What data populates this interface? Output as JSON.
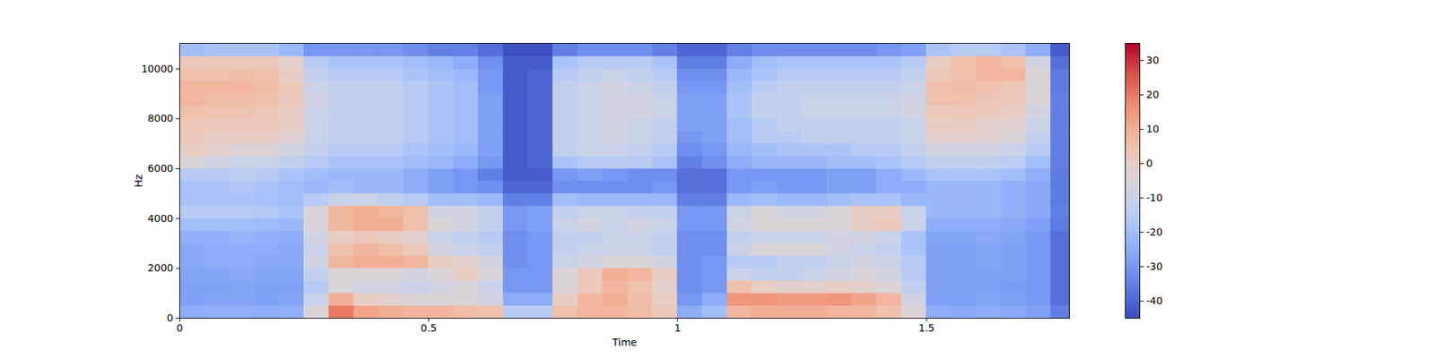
{
  "chart_data": {
    "type": "heatmap",
    "x_label": "Time",
    "y_label": "Hz",
    "xlim": [
      0,
      1.787
    ],
    "ylim": [
      0,
      11025
    ],
    "xticks": [
      0,
      0.5,
      1,
      1.5
    ],
    "yticks": [
      0,
      2000,
      4000,
      6000,
      8000,
      10000
    ],
    "x_edges": [
      0,
      0.05,
      0.1,
      0.15,
      0.2,
      0.25,
      0.3,
      0.35,
      0.4,
      0.45,
      0.5,
      0.55,
      0.6,
      0.65,
      0.7,
      0.75,
      0.8,
      0.85,
      0.9,
      0.95,
      1.0,
      1.05,
      1.1,
      1.15,
      1.2,
      1.25,
      1.3,
      1.35,
      1.4,
      1.45,
      1.5,
      1.55,
      1.6,
      1.65,
      1.7,
      1.75,
      1.787
    ],
    "y_edges": [
      0,
      500,
      1000,
      1500,
      2000,
      2500,
      3000,
      3500,
      4000,
      4500,
      5000,
      5500,
      6000,
      6500,
      7000,
      7500,
      8000,
      8500,
      9000,
      9500,
      10000,
      10500,
      11025
    ],
    "values": [
      [
        -25,
        -24,
        -24,
        -25,
        -24,
        -5,
        20,
        12,
        10,
        8,
        8,
        6,
        5,
        -15,
        -15,
        5,
        8,
        8,
        6,
        2,
        -25,
        -20,
        8,
        10,
        10,
        10,
        8,
        8,
        5,
        -5,
        -25,
        -26,
        -25,
        -26,
        -28,
        -35
      ],
      [
        -28,
        -27,
        -27,
        -28,
        -27,
        -10,
        10,
        0,
        -2,
        -5,
        -5,
        -5,
        -8,
        -25,
        -25,
        0,
        8,
        10,
        6,
        0,
        -30,
        -25,
        15,
        15,
        14,
        14,
        15,
        12,
        8,
        -8,
        -28,
        -28,
        -27,
        -28,
        -30,
        -38
      ],
      [
        -28,
        -28,
        -27,
        -28,
        -28,
        -15,
        -5,
        -8,
        -8,
        -10,
        -8,
        -5,
        -10,
        -30,
        -30,
        -5,
        2,
        8,
        5,
        -2,
        -32,
        -30,
        5,
        0,
        -2,
        -2,
        0,
        -2,
        -5,
        -12,
        -28,
        -28,
        -28,
        -29,
        -30,
        -38
      ],
      [
        -27,
        -27,
        -26,
        -27,
        -27,
        -12,
        -5,
        -5,
        -5,
        -8,
        -5,
        0,
        -5,
        -30,
        -30,
        -5,
        2,
        10,
        8,
        0,
        -32,
        -30,
        -10,
        -12,
        -12,
        -10,
        -8,
        -5,
        -8,
        -15,
        -28,
        -28,
        -28,
        -28,
        -30,
        -38
      ],
      [
        -26,
        -25,
        -25,
        -26,
        -26,
        -8,
        8,
        10,
        10,
        8,
        0,
        -2,
        -8,
        -32,
        -30,
        -10,
        -8,
        -5,
        -5,
        -8,
        -32,
        -30,
        -15,
        -15,
        -12,
        -12,
        -10,
        -8,
        -10,
        -15,
        -28,
        -28,
        -27,
        -28,
        -30,
        -38
      ],
      [
        -26,
        -25,
        -25,
        -25,
        -26,
        -10,
        5,
        8,
        6,
        2,
        -8,
        -10,
        -12,
        -32,
        -30,
        -12,
        -10,
        -10,
        -10,
        -12,
        -32,
        -32,
        -10,
        -5,
        -5,
        -5,
        -8,
        -10,
        -12,
        -18,
        -28,
        -28,
        -27,
        -28,
        -30,
        -38
      ],
      [
        -24,
        -24,
        -23,
        -24,
        -25,
        -8,
        0,
        2,
        0,
        -2,
        -10,
        -12,
        -15,
        -32,
        -30,
        -12,
        -12,
        -10,
        -10,
        -12,
        -32,
        -32,
        -12,
        -10,
        -10,
        -10,
        -8,
        -8,
        -10,
        -18,
        -27,
        -27,
        -26,
        -27,
        -30,
        -38
      ],
      [
        -20,
        -20,
        -20,
        -21,
        -22,
        -5,
        8,
        10,
        10,
        5,
        -5,
        -8,
        -12,
        -30,
        -28,
        -10,
        -8,
        -10,
        -8,
        -10,
        -30,
        -30,
        -8,
        -5,
        -5,
        -5,
        -5,
        0,
        2,
        -10,
        -25,
        -25,
        -25,
        -26,
        -28,
        -36
      ],
      [
        -15,
        -15,
        -15,
        -16,
        -18,
        -5,
        8,
        10,
        8,
        5,
        -8,
        -8,
        -12,
        -30,
        -28,
        -12,
        -10,
        -10,
        -12,
        -12,
        -30,
        -30,
        -10,
        -5,
        -8,
        -8,
        -5,
        0,
        0,
        -10,
        -22,
        -22,
        -22,
        -24,
        -26,
        -35
      ],
      [
        -18,
        -18,
        -18,
        -19,
        -20,
        -15,
        -10,
        -10,
        -12,
        -15,
        -20,
        -20,
        -22,
        -35,
        -35,
        -20,
        -22,
        -22,
        -22,
        -22,
        -35,
        -35,
        -22,
        -20,
        -22,
        -22,
        -20,
        -18,
        -18,
        -22,
        -22,
        -22,
        -22,
        -24,
        -26,
        -36
      ],
      [
        -18,
        -18,
        -17,
        -18,
        -20,
        -22,
        -20,
        -22,
        -22,
        -25,
        -28,
        -30,
        -32,
        -40,
        -40,
        -32,
        -32,
        -32,
        -32,
        -30,
        -38,
        -38,
        -30,
        -28,
        -30,
        -30,
        -28,
        -28,
        -25,
        -25,
        -22,
        -22,
        -22,
        -24,
        -26,
        -36
      ],
      [
        -15,
        -15,
        -14,
        -15,
        -18,
        -20,
        -22,
        -22,
        -22,
        -25,
        -28,
        -30,
        -35,
        -42,
        -42,
        -30,
        -28,
        -30,
        -32,
        -32,
        -38,
        -38,
        -30,
        -30,
        -30,
        -30,
        -28,
        -28,
        -25,
        -22,
        -18,
        -18,
        -18,
        -20,
        -24,
        -36
      ],
      [
        -5,
        -8,
        -10,
        -10,
        -12,
        -15,
        -18,
        -18,
        -18,
        -20,
        -22,
        -25,
        -30,
        -42,
        -40,
        -18,
        -15,
        -15,
        -15,
        -18,
        -35,
        -32,
        -25,
        -22,
        -22,
        -22,
        -20,
        -20,
        -18,
        -15,
        -12,
        -12,
        -12,
        -14,
        -20,
        -35
      ],
      [
        0,
        -2,
        -5,
        -5,
        -8,
        -12,
        -15,
        -15,
        -15,
        -18,
        -20,
        -22,
        -28,
        -42,
        -40,
        -12,
        -10,
        -10,
        -12,
        -15,
        -32,
        -30,
        -22,
        -20,
        -18,
        -18,
        -18,
        -15,
        -15,
        -12,
        -8,
        -8,
        -8,
        -10,
        -15,
        -35
      ],
      [
        2,
        0,
        0,
        0,
        -3,
        -10,
        -12,
        -12,
        -12,
        -15,
        -18,
        -20,
        -28,
        -42,
        -40,
        -12,
        -10,
        -8,
        -10,
        -12,
        -30,
        -28,
        -20,
        -15,
        -15,
        -12,
        -12,
        -12,
        -12,
        -10,
        -2,
        -2,
        -3,
        -5,
        -12,
        -35
      ],
      [
        3,
        2,
        2,
        2,
        0,
        -10,
        -12,
        -12,
        -12,
        -15,
        -18,
        -20,
        -28,
        -42,
        -40,
        -12,
        -10,
        -8,
        -10,
        -12,
        -28,
        -28,
        -20,
        -15,
        -12,
        -12,
        -12,
        -12,
        -12,
        -10,
        0,
        0,
        -2,
        -3,
        -10,
        -35
      ],
      [
        5,
        4,
        4,
        3,
        0,
        -10,
        -12,
        -12,
        -12,
        -15,
        -18,
        -20,
        -28,
        -42,
        -40,
        -12,
        -10,
        -8,
        -8,
        -10,
        -28,
        -28,
        -18,
        -12,
        -12,
        -10,
        -10,
        -10,
        -10,
        -8,
        2,
        3,
        2,
        0,
        -8,
        -35
      ],
      [
        8,
        6,
        6,
        5,
        2,
        -8,
        -12,
        -12,
        -12,
        -15,
        -18,
        -20,
        -28,
        -42,
        -40,
        -12,
        -10,
        -8,
        -8,
        -10,
        -28,
        -28,
        -18,
        -12,
        -12,
        -10,
        -10,
        -10,
        -10,
        -8,
        5,
        5,
        3,
        2,
        -5,
        -35
      ],
      [
        8,
        8,
        8,
        6,
        2,
        -10,
        -12,
        -12,
        -12,
        -15,
        -18,
        -20,
        -30,
        -42,
        -40,
        -12,
        -10,
        -8,
        -10,
        -12,
        -30,
        -30,
        -20,
        -15,
        -12,
        -12,
        -12,
        -12,
        -12,
        -10,
        5,
        6,
        5,
        3,
        -5,
        -36
      ],
      [
        5,
        5,
        6,
        5,
        0,
        -12,
        -15,
        -15,
        -15,
        -18,
        -20,
        -22,
        -30,
        -42,
        -40,
        -15,
        -12,
        -10,
        -12,
        -15,
        -32,
        -32,
        -22,
        -18,
        -15,
        -15,
        -15,
        -15,
        -15,
        -12,
        3,
        5,
        8,
        8,
        -5,
        -36
      ],
      [
        2,
        2,
        2,
        2,
        -2,
        -15,
        -18,
        -18,
        -18,
        -20,
        -22,
        -25,
        -32,
        -42,
        -42,
        -18,
        -15,
        -15,
        -15,
        -18,
        -35,
        -35,
        -25,
        -20,
        -18,
        -18,
        -18,
        -18,
        -18,
        -15,
        0,
        5,
        8,
        5,
        -8,
        -38
      ],
      [
        -20,
        -18,
        -18,
        -18,
        -22,
        -30,
        -30,
        -30,
        -30,
        -32,
        -35,
        -35,
        -38,
        -44,
        -44,
        -35,
        -32,
        -32,
        -32,
        -35,
        -40,
        -40,
        -35,
        -32,
        -32,
        -32,
        -32,
        -32,
        -30,
        -28,
        -18,
        -15,
        -15,
        -18,
        -25,
        -42
      ]
    ],
    "colorbar": {
      "range": [
        -45,
        35
      ],
      "ticks": [
        -40,
        -30,
        -20,
        -10,
        0,
        10,
        20,
        30
      ]
    }
  }
}
